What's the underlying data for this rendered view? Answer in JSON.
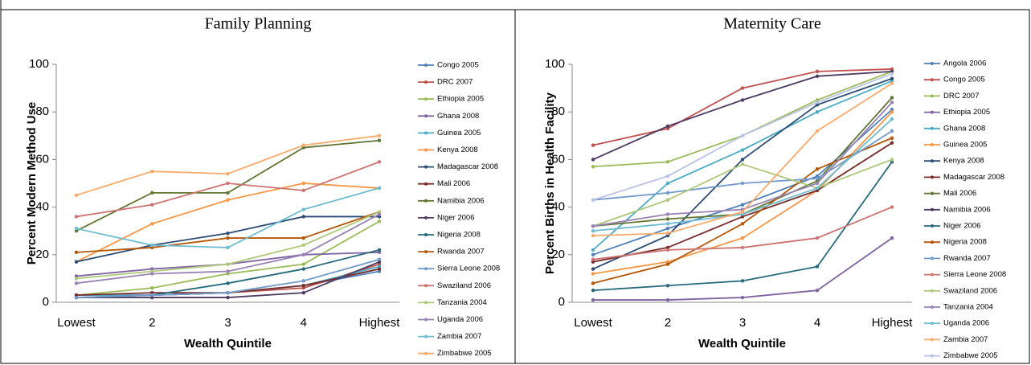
{
  "chart_data": [
    {
      "type": "line",
      "title": "Family Planning",
      "x_label": "Wealth Quintile",
      "y_label": "Percent Modern Method Use",
      "categories": [
        "Lowest",
        "2",
        "3",
        "4",
        "Highest"
      ],
      "ylim": [
        0,
        100
      ],
      "yticks": [
        0,
        20,
        40,
        60,
        80,
        100
      ],
      "grid": false,
      "legend": "right",
      "series": [
        {
          "name": "Congo 2005",
          "color": "#4F81BD",
          "values": [
            3,
            3,
            4,
            7,
            13
          ]
        },
        {
          "name": "DRC 2007",
          "color": "#C0504D",
          "values": [
            3,
            3,
            4,
            6,
            16
          ]
        },
        {
          "name": "Ethiopia 2005",
          "color": "#9BBB59",
          "values": [
            3,
            6,
            12,
            16,
            34
          ]
        },
        {
          "name": "Ghana 2008",
          "color": "#8064A2",
          "values": [
            11,
            14,
            16,
            20,
            21
          ]
        },
        {
          "name": "Guinea 2005",
          "color": "#4BACC6",
          "values": [
            3,
            3,
            4,
            7,
            15
          ]
        },
        {
          "name": "Kenya 2008",
          "color": "#F79646",
          "values": [
            17,
            33,
            43,
            50,
            48
          ]
        },
        {
          "name": "Madagascar 2008",
          "color": "#2C4D75",
          "values": [
            17,
            24,
            29,
            36,
            36
          ]
        },
        {
          "name": "Mali 2006",
          "color": "#772C2A",
          "values": [
            3,
            4,
            4,
            7,
            14
          ]
        },
        {
          "name": "Namibia 2006",
          "color": "#5F7530",
          "values": [
            30,
            46,
            46,
            65,
            68
          ]
        },
        {
          "name": "Niger 2006",
          "color": "#4D3B62",
          "values": [
            2,
            2,
            2,
            4,
            17
          ]
        },
        {
          "name": "Nigeria 2008",
          "color": "#276A7C",
          "values": [
            2,
            3,
            8,
            14,
            22
          ]
        },
        {
          "name": "Rwanda 2007",
          "color": "#B65708",
          "values": [
            21,
            23,
            27,
            27,
            38
          ]
        },
        {
          "name": "Sierra Leone 2008",
          "color": "#729ACA",
          "values": [
            2,
            3,
            4,
            9,
            18
          ]
        },
        {
          "name": "Swaziland 2006",
          "color": "#CD7371",
          "values": [
            36,
            41,
            50,
            47,
            59
          ]
        },
        {
          "name": "Tanzania 2004",
          "color": "#AFC97A",
          "values": [
            10,
            13,
            16,
            24,
            38
          ]
        },
        {
          "name": "Uganda 2006",
          "color": "#9983B5",
          "values": [
            8,
            12,
            13,
            20,
            37
          ]
        },
        {
          "name": "Zambia 2007",
          "color": "#6FBDD1",
          "values": [
            31,
            24,
            23,
            39,
            48
          ]
        },
        {
          "name": "Zimbabwe 2005",
          "color": "#F9AB6B",
          "values": [
            45,
            55,
            54,
            66,
            70
          ]
        }
      ]
    },
    {
      "type": "line",
      "title": "Maternity Care",
      "x_label": "Wealth Quintile",
      "y_label": "Percent Births in Health Facility",
      "categories": [
        "Lowest",
        "2",
        "3",
        "4",
        "Highest"
      ],
      "ylim": [
        0,
        100
      ],
      "yticks": [
        0,
        20,
        40,
        60,
        80,
        100
      ],
      "grid": false,
      "legend": "right",
      "series": [
        {
          "name": "Angola 2006",
          "color": "#4F81BD",
          "values": [
            20,
            31,
            41,
            53,
            81
          ]
        },
        {
          "name": "Congo 2005",
          "color": "#C0504D",
          "values": [
            66,
            73,
            90,
            97,
            98
          ]
        },
        {
          "name": "DRC 2007",
          "color": "#9BBB59",
          "values": [
            57,
            59,
            70,
            85,
            97
          ]
        },
        {
          "name": "Ethiopia 2005",
          "color": "#8064A2",
          "values": [
            1,
            1,
            2,
            5,
            27
          ]
        },
        {
          "name": "Ghana 2008",
          "color": "#4BACC6",
          "values": [
            22,
            50,
            64,
            80,
            93
          ]
        },
        {
          "name": "Guinea 2005",
          "color": "#F79646",
          "values": [
            12,
            17,
            27,
            47,
            80
          ]
        },
        {
          "name": "Kenya 2008",
          "color": "#2C4D75",
          "values": [
            14,
            28,
            60,
            83,
            94
          ]
        },
        {
          "name": "Madagascar 2008",
          "color": "#772C2A",
          "values": [
            17,
            23,
            36,
            47,
            67
          ]
        },
        {
          "name": "Mali 2006",
          "color": "#5F7530",
          "values": [
            32,
            35,
            37,
            51,
            86
          ]
        },
        {
          "name": "Namibia 2006",
          "color": "#4D3B62",
          "values": [
            60,
            74,
            85,
            95,
            97
          ]
        },
        {
          "name": "Niger 2006",
          "color": "#276A7C",
          "values": [
            5,
            7,
            9,
            15,
            59
          ]
        },
        {
          "name": "Nigeria 2008",
          "color": "#B65708",
          "values": [
            8,
            16,
            33,
            56,
            69
          ]
        },
        {
          "name": "Rwanda 2007",
          "color": "#729ACA",
          "values": [
            43,
            46,
            50,
            52,
            72
          ]
        },
        {
          "name": "Sierra Leone 2008",
          "color": "#CD7371",
          "values": [
            18,
            22,
            23,
            27,
            40
          ]
        },
        {
          "name": "Swaziland 2006",
          "color": "#AFC97A",
          "values": [
            32,
            43,
            58,
            48,
            60
          ]
        },
        {
          "name": "Tanzania 2004",
          "color": "#9983B5",
          "values": [
            32,
            37,
            39,
            50,
            84
          ]
        },
        {
          "name": "Uganda 2006",
          "color": "#6FBDD1",
          "values": [
            30,
            33,
            37,
            48,
            77
          ]
        },
        {
          "name": "Zambia 2007",
          "color": "#F9AB6B",
          "values": [
            28,
            29,
            38,
            72,
            92
          ]
        },
        {
          "name": "Zimbabwe 2005",
          "color": "#B9C3E6",
          "values": [
            43,
            53,
            70,
            84,
            96
          ]
        }
      ]
    }
  ]
}
